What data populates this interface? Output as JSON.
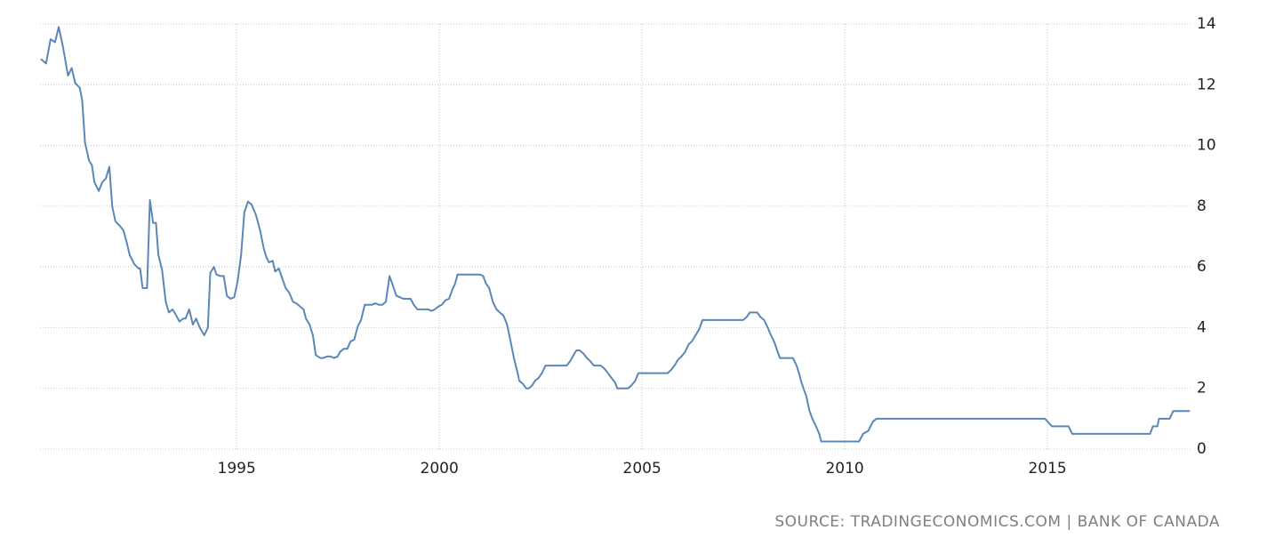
{
  "chart_data": {
    "type": "line",
    "source": "SOURCE: TRADINGECONOMICS.COM | BANK OF CANADA",
    "x": [
      1990.17,
      1990.3,
      1990.41,
      1990.52,
      1990.61,
      1990.71,
      1990.84,
      1990.93,
      1991.02,
      1991.13,
      1991.19,
      1991.26,
      1991.36,
      1991.43,
      1991.49,
      1991.6,
      1991.69,
      1991.77,
      1991.86,
      1991.93,
      1992.01,
      1992.12,
      1992.21,
      1992.29,
      1992.36,
      1992.47,
      1992.58,
      1992.62,
      1992.68,
      1992.79,
      1992.86,
      1992.94,
      1993.01,
      1993.07,
      1993.16,
      1993.25,
      1993.33,
      1993.42,
      1993.51,
      1993.59,
      1993.68,
      1993.74,
      1993.83,
      1993.92,
      1994.0,
      1994.09,
      1994.2,
      1994.29,
      1994.35,
      1994.44,
      1994.5,
      1994.59,
      1994.68,
      1994.76,
      1994.85,
      1994.94,
      1995.02,
      1995.11,
      1995.19,
      1995.28,
      1995.37,
      1995.48,
      1995.58,
      1995.67,
      1995.74,
      1995.8,
      1995.89,
      1995.95,
      1996.04,
      1996.13,
      1996.21,
      1996.3,
      1996.39,
      1996.47,
      1996.56,
      1996.65,
      1996.71,
      1996.8,
      1996.88,
      1996.95,
      1997.06,
      1997.14,
      1997.23,
      1997.32,
      1997.4,
      1997.49,
      1997.55,
      1997.64,
      1997.73,
      1997.81,
      1997.9,
      1997.99,
      1998.07,
      1998.16,
      1998.25,
      1998.33,
      1998.42,
      1998.51,
      1998.59,
      1998.68,
      1998.77,
      1998.85,
      1998.94,
      1999.03,
      1999.11,
      1999.2,
      1999.29,
      1999.37,
      1999.46,
      1999.55,
      1999.63,
      1999.72,
      1999.81,
      1999.89,
      1999.98,
      2000.06,
      2000.15,
      2000.24,
      2000.32,
      2000.39,
      2000.45,
      2000.56,
      2001.0,
      2001.08,
      2001.15,
      2001.23,
      2001.32,
      2001.41,
      2001.49,
      2001.58,
      2001.67,
      2001.75,
      2001.84,
      2001.93,
      2001.97,
      2002.06,
      2002.14,
      2002.21,
      2002.29,
      2002.36,
      2002.45,
      2002.53,
      2002.62,
      2003.14,
      2003.23,
      2003.31,
      2003.38,
      2003.46,
      2003.55,
      2003.64,
      2003.72,
      2003.81,
      2003.98,
      2004.07,
      2004.16,
      2004.24,
      2004.33,
      2004.39,
      2004.65,
      2004.74,
      2004.83,
      2004.91,
      2005.63,
      2005.71,
      2005.8,
      2005.89,
      2005.97,
      2006.06,
      2006.15,
      2006.23,
      2006.32,
      2006.41,
      2006.49,
      2007.49,
      2007.58,
      2007.66,
      2007.84,
      2007.92,
      2008.01,
      2008.1,
      2008.18,
      2008.27,
      2008.33,
      2008.4,
      2008.72,
      2008.81,
      2008.87,
      2008.92,
      2008.98,
      2009.05,
      2009.13,
      2009.2,
      2009.29,
      2009.37,
      2009.42,
      2010.35,
      2010.45,
      2010.58,
      2010.69,
      2010.78,
      2014.94,
      2015.11,
      2015.52,
      2015.61,
      2017.53,
      2017.6,
      2017.71,
      2017.75,
      2018.01,
      2018.1,
      2018.51
    ],
    "series": [
      {
        "color": "#5b87b8",
        "values": [
          12.85,
          12.7,
          13.5,
          13.4,
          13.9,
          13.3,
          12.3,
          12.55,
          12.05,
          11.9,
          11.5,
          10.1,
          9.5,
          9.35,
          8.8,
          8.5,
          8.8,
          8.9,
          9.3,
          8.0,
          7.5,
          7.35,
          7.2,
          6.8,
          6.4,
          6.1,
          5.95,
          5.95,
          5.3,
          5.3,
          8.2,
          7.45,
          7.45,
          6.4,
          5.9,
          4.85,
          4.5,
          4.6,
          4.4,
          4.2,
          4.3,
          4.3,
          4.6,
          4.1,
          4.3,
          4.0,
          3.75,
          4.0,
          5.8,
          6.0,
          5.75,
          5.7,
          5.7,
          5.05,
          4.95,
          5.0,
          5.5,
          6.4,
          7.8,
          8.15,
          8.05,
          7.7,
          7.2,
          6.6,
          6.3,
          6.15,
          6.2,
          5.85,
          5.95,
          5.6,
          5.3,
          5.15,
          4.85,
          4.8,
          4.7,
          4.6,
          4.3,
          4.1,
          3.75,
          3.1,
          3.0,
          3.0,
          3.05,
          3.05,
          3.0,
          3.05,
          3.2,
          3.3,
          3.3,
          3.55,
          3.6,
          4.05,
          4.25,
          4.75,
          4.75,
          4.75,
          4.8,
          4.75,
          4.75,
          4.85,
          5.7,
          5.4,
          5.05,
          5.0,
          4.95,
          4.95,
          4.95,
          4.75,
          4.6,
          4.6,
          4.6,
          4.6,
          4.55,
          4.6,
          4.7,
          4.75,
          4.9,
          4.95,
          5.25,
          5.45,
          5.75,
          5.75,
          5.75,
          5.7,
          5.45,
          5.3,
          4.85,
          4.6,
          4.5,
          4.4,
          4.1,
          3.6,
          3.0,
          2.5,
          2.25,
          2.15,
          2.0,
          2.0,
          2.1,
          2.25,
          2.35,
          2.5,
          2.75,
          2.75,
          2.9,
          3.1,
          3.25,
          3.25,
          3.15,
          3.0,
          2.9,
          2.75,
          2.75,
          2.65,
          2.5,
          2.35,
          2.2,
          2.0,
          2.0,
          2.1,
          2.25,
          2.5,
          2.5,
          2.6,
          2.75,
          2.95,
          3.05,
          3.2,
          3.45,
          3.55,
          3.75,
          3.95,
          4.25,
          4.25,
          4.35,
          4.5,
          4.5,
          4.35,
          4.25,
          4.0,
          3.75,
          3.5,
          3.25,
          3.0,
          3.0,
          2.75,
          2.5,
          2.25,
          2.0,
          1.75,
          1.25,
          1.0,
          0.75,
          0.5,
          0.25,
          0.25,
          0.5,
          0.6,
          0.9,
          1.0,
          1.0,
          0.75,
          0.75,
          0.5,
          0.5,
          0.75,
          0.75,
          1.0,
          1.0,
          1.25,
          1.25
        ]
      }
    ],
    "xlim": [
      1990.15,
      2018.55
    ],
    "xticks": [
      1995,
      2000,
      2005,
      2010,
      2015
    ],
    "ylim": [
      0,
      14
    ],
    "yticks": [
      0,
      2,
      4,
      6,
      8,
      10,
      12,
      14
    ],
    "grid": true
  }
}
